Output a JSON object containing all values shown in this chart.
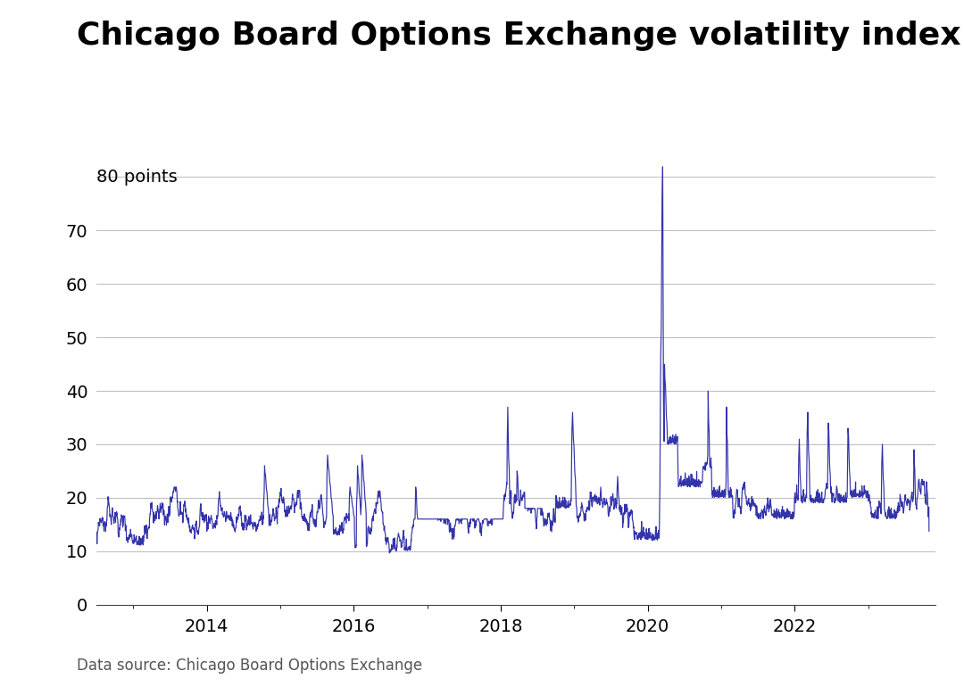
{
  "title": "Chicago Board Options Exchange volatility index",
  "source_text": "Data source: Chicago Board Options Exchange",
  "line_color": "#3333aa",
  "background_color": "#ffffff",
  "ylim": [
    0,
    90
  ],
  "yticks": [
    0,
    10,
    20,
    30,
    40,
    50,
    60,
    70,
    80
  ],
  "grid_color": "#bbbbbb",
  "title_fontsize": 26,
  "tick_fontsize": 14,
  "source_fontsize": 12,
  "ylabel_label": "80 points"
}
